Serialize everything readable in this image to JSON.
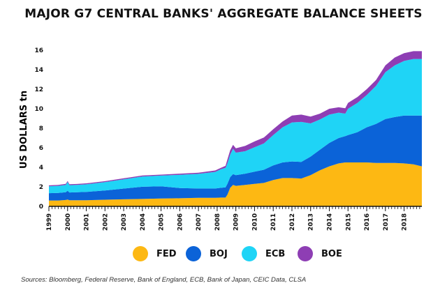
{
  "chart_data": {
    "type": "area",
    "stacked": true,
    "title": "MAJOR G7 CENTRAL BANKS' AGGREGATE BALANCE SHEETS",
    "ylabel": "US DOLLARS tn",
    "xlabel": "",
    "ylim": [
      0,
      16
    ],
    "xlim": [
      1999,
      2018.95
    ],
    "yticks": [
      "0",
      "2",
      "4",
      "6",
      "8",
      "10",
      "12",
      "14",
      "16"
    ],
    "xticks": [
      "1999",
      "2000",
      "2001",
      "2002",
      "2003",
      "2004",
      "2005",
      "2006",
      "2007",
      "2008",
      "2009",
      "2010",
      "2011",
      "2012",
      "2013",
      "2014",
      "2015",
      "2016",
      "2017",
      "2018"
    ],
    "x": [
      1999,
      1999.5,
      1999.9,
      2000.0,
      2000.1,
      2000.5,
      2001,
      2002,
      2003,
      2004,
      2005,
      2006,
      2007,
      2007.9,
      2008.2,
      2008.45,
      2008.55,
      2008.7,
      2008.85,
      2009,
      2009.5,
      2010,
      2010.5,
      2011,
      2011.5,
      2012,
      2012.5,
      2013,
      2013.5,
      2014,
      2014.5,
      2014.85,
      2015,
      2015.5,
      2016,
      2016.5,
      2017,
      2017.5,
      2018,
      2018.5,
      2018.95
    ],
    "series": [
      {
        "name": "FED",
        "color": "#FDB813",
        "values": [
          0.6,
          0.6,
          0.65,
          0.7,
          0.62,
          0.62,
          0.63,
          0.68,
          0.72,
          0.76,
          0.8,
          0.83,
          0.88,
          0.88,
          0.9,
          0.9,
          1.2,
          1.9,
          2.2,
          2.1,
          2.2,
          2.3,
          2.4,
          2.7,
          2.9,
          2.9,
          2.85,
          3.2,
          3.7,
          4.1,
          4.4,
          4.5,
          4.5,
          4.5,
          4.5,
          4.45,
          4.45,
          4.45,
          4.4,
          4.3,
          4.1
        ]
      },
      {
        "name": "BOJ",
        "color": "#0B63D8",
        "values": [
          0.75,
          0.78,
          0.8,
          0.9,
          0.8,
          0.82,
          0.85,
          0.95,
          1.1,
          1.25,
          1.25,
          1.05,
          0.95,
          0.95,
          1.0,
          1.05,
          1.1,
          1.1,
          1.1,
          1.1,
          1.15,
          1.25,
          1.35,
          1.5,
          1.6,
          1.7,
          1.7,
          1.9,
          2.1,
          2.4,
          2.6,
          2.7,
          2.8,
          3.1,
          3.6,
          4.0,
          4.5,
          4.7,
          4.9,
          5.0,
          5.2
        ]
      },
      {
        "name": "ECB",
        "color": "#1FD4F6",
        "values": [
          0.7,
          0.72,
          0.75,
          0.9,
          0.75,
          0.75,
          0.78,
          0.85,
          0.95,
          1.05,
          1.1,
          1.35,
          1.5,
          1.7,
          1.9,
          2.0,
          2.1,
          2.3,
          2.6,
          2.3,
          2.3,
          2.5,
          2.7,
          3.1,
          3.6,
          4.0,
          4.1,
          3.4,
          3.1,
          2.9,
          2.6,
          2.3,
          2.7,
          3.0,
          3.3,
          3.9,
          4.8,
          5.3,
          5.6,
          5.8,
          5.8
        ]
      },
      {
        "name": "BOE",
        "color": "#8E3EB4",
        "values": [
          0.1,
          0.1,
          0.1,
          0.1,
          0.1,
          0.1,
          0.1,
          0.1,
          0.1,
          0.1,
          0.1,
          0.12,
          0.12,
          0.15,
          0.15,
          0.2,
          0.4,
          0.45,
          0.4,
          0.45,
          0.55,
          0.6,
          0.6,
          0.6,
          0.6,
          0.7,
          0.75,
          0.7,
          0.6,
          0.6,
          0.55,
          0.55,
          0.6,
          0.6,
          0.6,
          0.6,
          0.7,
          0.8,
          0.8,
          0.8,
          0.8
        ]
      }
    ]
  },
  "legend": [
    {
      "label": "FED",
      "color": "#FDB813"
    },
    {
      "label": "BOJ",
      "color": "#0B63D8"
    },
    {
      "label": "ECB",
      "color": "#1FD4F6"
    },
    {
      "label": "BOE",
      "color": "#8E3EB4"
    }
  ],
  "source": "Sources: Bloomberg, Federal Reserve, Bank of England, ECB, Bank of Japan, CEIC Data, CLSA"
}
